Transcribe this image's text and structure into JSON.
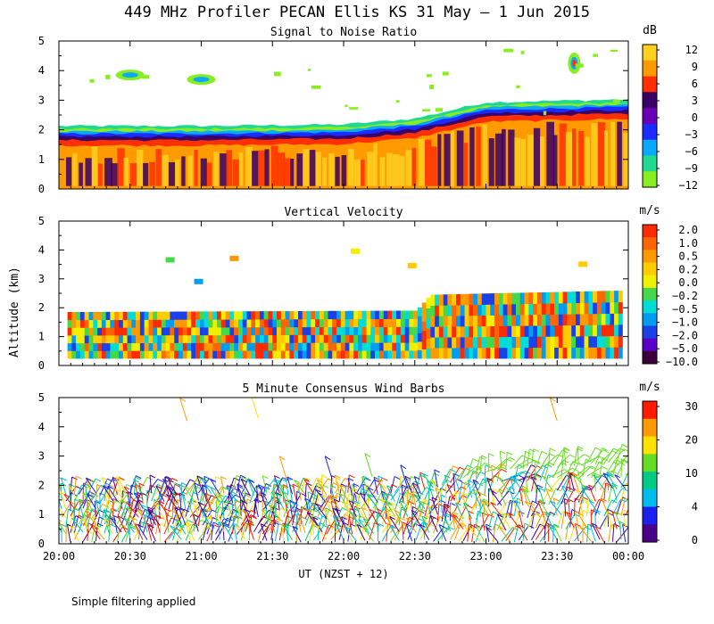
{
  "title": "449 MHz Profiler PECAN Ellis KS 31 May –  1 Jun 2015",
  "ylabel": "Altitude (km)",
  "xlabel": "UT  (NZST + 12)",
  "footer": "Simple filtering applied",
  "x_ticks": [
    "20:00",
    "20:30",
    "21:00",
    "21:30",
    "22:00",
    "22:30",
    "23:00",
    "23:30",
    "00:00"
  ],
  "y_ticks": [
    "0",
    "1",
    "2",
    "3",
    "4",
    "5"
  ],
  "chart_data": [
    {
      "type": "heatmap",
      "title": "Signal to Noise Ratio",
      "unit": "dB",
      "x_range_hours": [
        20,
        24
      ],
      "ylim": [
        0,
        5
      ],
      "colorbar_labels": [
        "12",
        "9",
        "6",
        "3",
        "0",
        "−3",
        "−6",
        "−9",
        "−12"
      ],
      "colorbar_colors": [
        "#ffd020",
        "#ff9a00",
        "#ff3000",
        "#3a0066",
        "#6a00b4",
        "#1a2cff",
        "#0aa8ff",
        "#20d890",
        "#88ee22"
      ],
      "boundary_layer_top_km": {
        "hours": [
          20.0,
          21.0,
          22.0,
          22.5,
          23.0,
          24.0
        ],
        "values": [
          1.85,
          1.85,
          1.9,
          2.1,
          2.65,
          2.75
        ]
      },
      "features": [
        {
          "hour": 20.5,
          "alt_km": 3.85,
          "note": "echo patch"
        },
        {
          "hour": 21.0,
          "alt_km": 3.7,
          "note": "echo patch"
        },
        {
          "hour": 23.62,
          "alt_km": 4.25,
          "note": "strong isolated echo"
        }
      ]
    },
    {
      "type": "heatmap",
      "title": "Vertical Velocity",
      "unit": "m/s",
      "x_range_hours": [
        20,
        24
      ],
      "ylim": [
        0,
        5
      ],
      "colorbar_labels": [
        "2.0",
        "1.0",
        "0.5",
        "0.2",
        "0.0",
        "−0.2",
        "−0.5",
        "−1.0",
        "−2.0",
        "−5.0",
        "−10.0"
      ],
      "colorbar_colors": [
        "#ff2a00",
        "#ff6600",
        "#ff9900",
        "#ffcc00",
        "#f0f000",
        "#44d84a",
        "#00dcd6",
        "#009cf0",
        "#1a40e8",
        "#5a00c8",
        "#3c003c"
      ],
      "boundary_layer_top_km": {
        "hours": [
          20.0,
          22.5,
          22.6,
          24.0
        ],
        "values": [
          1.85,
          1.9,
          2.45,
          2.6
        ]
      }
    },
    {
      "type": "scatter",
      "title": "5 Minute Consensus Wind Barbs",
      "unit": "m/s",
      "x_range_hours": [
        20,
        24
      ],
      "ylim": [
        0,
        5
      ],
      "colorbar_labels": [
        "30",
        "20",
        "10",
        "4",
        "0"
      ],
      "colorbar_colors": [
        "#ff1a00",
        "#ff9900",
        "#ffe000",
        "#66dd22",
        "#00cc88",
        "#00bbee",
        "#1a20ee",
        "#4a0088"
      ],
      "barb_layer_top_km": {
        "hours": [
          20.0,
          22.5,
          23.0,
          24.0
        ],
        "values": [
          1.7,
          1.7,
          2.5,
          2.8
        ]
      }
    }
  ]
}
